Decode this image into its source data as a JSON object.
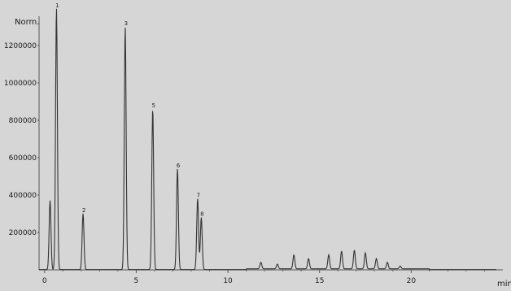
{
  "chart_data": {
    "type": "line",
    "ylabel": "Norm.",
    "xlabel": "min",
    "xlim": [
      -0.3,
      25.0
    ],
    "ylim": [
      0,
      1400000
    ],
    "x_ticks": [
      0,
      5,
      10,
      15,
      20
    ],
    "y_ticks": [
      200000,
      400000,
      600000,
      800000,
      1000000,
      1200000
    ],
    "y_tick_labels": [
      "200000",
      "400000",
      "600000",
      "800000",
      "1000000",
      "1200000"
    ],
    "grid": false,
    "line_color": "#333333",
    "peaks": [
      {
        "x": 0.3,
        "y": 370000,
        "label": ""
      },
      {
        "x": 0.65,
        "y": 1400000,
        "label": "1"
      },
      {
        "x": 2.1,
        "y": 300000,
        "label": "2"
      },
      {
        "x": 4.4,
        "y": 1300000,
        "label": "3"
      },
      {
        "x": 5.9,
        "y": 860000,
        "label": "5"
      },
      {
        "x": 7.25,
        "y": 540000,
        "label": "6"
      },
      {
        "x": 8.35,
        "y": 380000,
        "label": "7"
      },
      {
        "x": 8.55,
        "y": 280000,
        "label": "8"
      },
      {
        "x": 11.8,
        "y": 35000,
        "label": ""
      },
      {
        "x": 12.7,
        "y": 25000,
        "label": ""
      },
      {
        "x": 13.6,
        "y": 75000,
        "label": ""
      },
      {
        "x": 14.4,
        "y": 55000,
        "label": ""
      },
      {
        "x": 15.5,
        "y": 75000,
        "label": ""
      },
      {
        "x": 16.2,
        "y": 95000,
        "label": ""
      },
      {
        "x": 16.9,
        "y": 100000,
        "label": ""
      },
      {
        "x": 17.5,
        "y": 85000,
        "label": ""
      },
      {
        "x": 18.1,
        "y": 55000,
        "label": ""
      },
      {
        "x": 18.7,
        "y": 35000,
        "label": ""
      },
      {
        "x": 19.4,
        "y": 15000,
        "label": ""
      }
    ]
  }
}
